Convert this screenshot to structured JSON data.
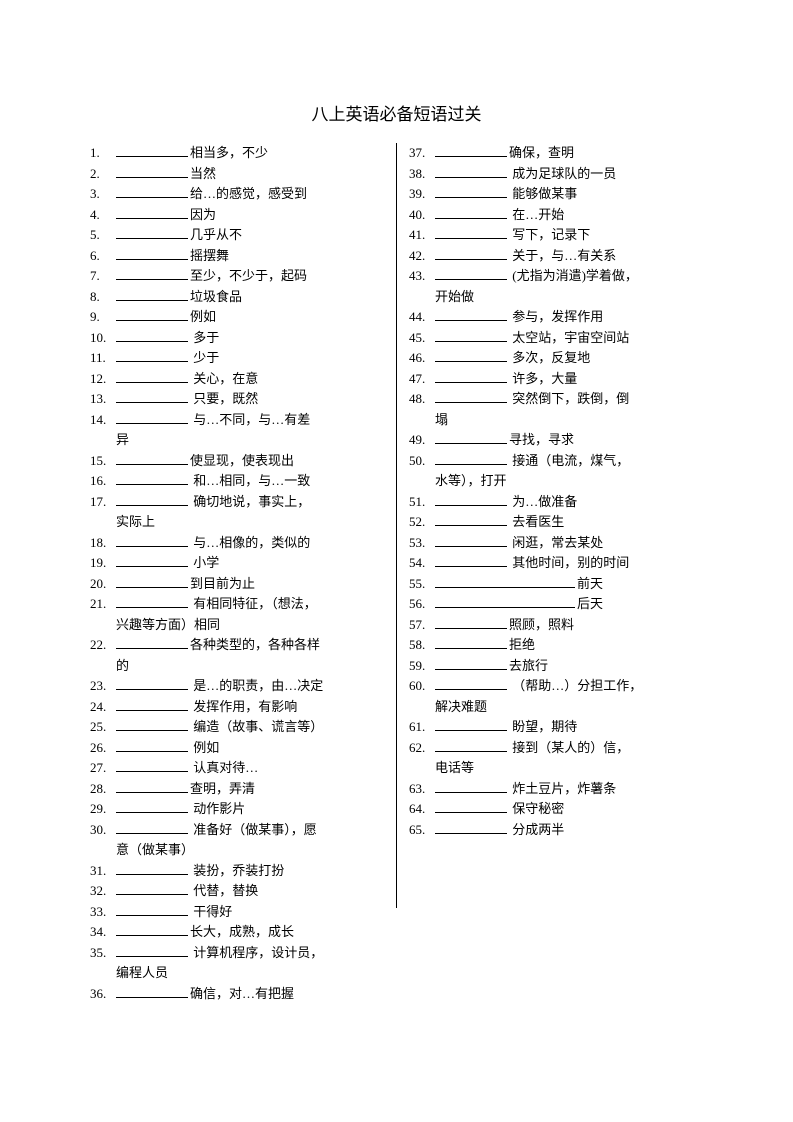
{
  "title": "八上英语必备短语过关",
  "font_size_title": 17,
  "font_size_body": 13,
  "line_height": 20.5,
  "text_color": "#000000",
  "background_color": "#ffffff",
  "blank_width": 72,
  "blank_width_long": 140,
  "left_column": [
    {
      "num": "1.",
      "text": "相当多，不少"
    },
    {
      "num": "2.",
      "text": "当然"
    },
    {
      "num": "3.",
      "text": "给…的感觉，感受到"
    },
    {
      "num": "4.",
      "text": "因为"
    },
    {
      "num": "5.",
      "text": "几乎从不"
    },
    {
      "num": "6.",
      "text": "摇摆舞"
    },
    {
      "num": "7.",
      "text": "至少，不少于，起码"
    },
    {
      "num": "8.",
      "text": "垃圾食品"
    },
    {
      "num": "9.",
      "text": "例如"
    },
    {
      "num": "10.",
      "text": " 多于"
    },
    {
      "num": "11.",
      "text": " 少于"
    },
    {
      "num": "12.",
      "text": " 关心，在意"
    },
    {
      "num": "13.",
      "text": " 只要，既然"
    },
    {
      "num": "14.",
      "text": " 与…不同，与…有差",
      "cont": "异"
    },
    {
      "num": "15.",
      "text": "使显现，使表现出"
    },
    {
      "num": "16.",
      "text": " 和…相同，与…一致"
    },
    {
      "num": "17.",
      "text": " 确切地说，事实上，",
      "cont": "实际上"
    },
    {
      "num": "18.",
      "text": " 与…相像的，类似的"
    },
    {
      "num": "19.",
      "text": " 小学"
    },
    {
      "num": "20.",
      "text": "到目前为止"
    },
    {
      "num": "21.",
      "text": " 有相同特征，（想法，",
      "cont": "兴趣等方面）相同"
    },
    {
      "num": "22.",
      "text": "各种类型的，各种各样",
      "cont": "的"
    },
    {
      "num": "23.",
      "text": " 是…的职责，由…决定"
    },
    {
      "num": "24.",
      "text": " 发挥作用，有影响"
    },
    {
      "num": "25.",
      "text": " 编造（故事、谎言等）"
    },
    {
      "num": "26.",
      "text": " 例如"
    },
    {
      "num": "27.",
      "text": " 认真对待…"
    },
    {
      "num": "28.",
      "text": "查明，弄清"
    },
    {
      "num": "29.",
      "text": " 动作影片"
    },
    {
      "num": "30.",
      "text": " 准备好（做某事），愿",
      "cont": "意（做某事）"
    },
    {
      "num": "31.",
      "text": " 装扮，乔装打扮"
    },
    {
      "num": "32.",
      "text": " 代替，替换"
    },
    {
      "num": "33.",
      "text": " 干得好"
    },
    {
      "num": "34.",
      "text": "长大，成熟，成长"
    },
    {
      "num": "35.",
      "text": " 计算机程序，设计员，",
      "cont": "编程人员"
    },
    {
      "num": "36.",
      "text": "确信，对…有把握"
    }
  ],
  "right_column": [
    {
      "num": "37.",
      "text": "确保，查明"
    },
    {
      "num": "38.",
      "text": " 成为足球队的一员"
    },
    {
      "num": "39.",
      "text": " 能够做某事"
    },
    {
      "num": "40.",
      "text": " 在…开始"
    },
    {
      "num": "41.",
      "text": " 写下，记录下"
    },
    {
      "num": "42.",
      "text": " 关于，与…有关系"
    },
    {
      "num": "43.",
      "text": " (尤指为消遣)学着做，",
      "cont": "开始做"
    },
    {
      "num": "44.",
      "text": " 参与，发挥作用"
    },
    {
      "num": "45.",
      "text": " 太空站，宇宙空间站"
    },
    {
      "num": "46.",
      "text": " 多次，反复地"
    },
    {
      "num": "47.",
      "text": " 许多，大量"
    },
    {
      "num": "48.",
      "text": " 突然倒下，跌倒，倒",
      "cont": "塌"
    },
    {
      "num": "49.",
      "text": "寻找，寻求"
    },
    {
      "num": "50.",
      "text": " 接通（电流，煤气，",
      "cont": "水等），打开"
    },
    {
      "num": "51.",
      "text": " 为…做准备"
    },
    {
      "num": "52.",
      "text": " 去看医生"
    },
    {
      "num": "53.",
      "text": " 闲逛，常去某处"
    },
    {
      "num": "54.",
      "text": " 其他时间，别的时间"
    },
    {
      "num": "55.",
      "text": "前天",
      "long_blank": true
    },
    {
      "num": "56.",
      "text": "后天",
      "long_blank": true
    },
    {
      "num": "57.",
      "text": "照顾，照料"
    },
    {
      "num": "58.",
      "text": "拒绝"
    },
    {
      "num": "59.",
      "text": "去旅行"
    },
    {
      "num": "60.",
      "text": " （帮助…）分担工作，",
      "cont": "解决难题"
    },
    {
      "num": "61.",
      "text": " 盼望，期待"
    },
    {
      "num": "62.",
      "text": " 接到（某人的）信，",
      "cont": "电话等"
    },
    {
      "num": "63.",
      "text": " 炸土豆片，炸薯条"
    },
    {
      "num": "64.",
      "text": " 保守秘密"
    },
    {
      "num": "65.",
      "text": " 分成两半"
    }
  ]
}
